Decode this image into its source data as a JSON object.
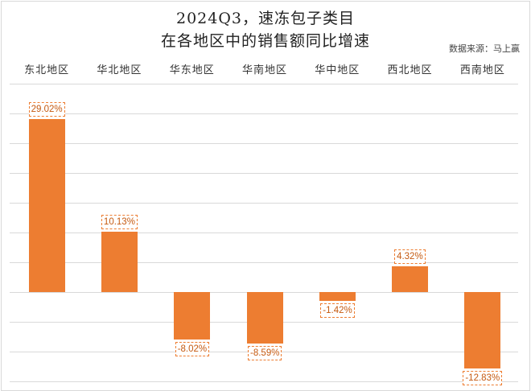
{
  "chart_data": {
    "type": "bar",
    "title": "2024Q3，速冻包子类目在各地区中的销售额同比增速",
    "title_lines": [
      "2024Q3，速冻包子类目",
      "在各地区中的销售额同比增速"
    ],
    "source": "数据来源：马上赢",
    "categories": [
      "东北地区",
      "华北地区",
      "华东地区",
      "华南地区",
      "华中地区",
      "西北地区",
      "西南地区"
    ],
    "values": [
      29.02,
      10.13,
      -8.02,
      -8.59,
      -1.42,
      4.32,
      -12.83
    ],
    "labels": [
      "29.02%",
      "10.13%",
      "-8.02%",
      "-8.59%",
      "-1.42%",
      "4.32%",
      "-12.83%"
    ],
    "xlabel": "",
    "ylabel": "",
    "ylim": [
      -15,
      35
    ],
    "grid": true,
    "x_axis_position": "top",
    "bar_color": "#ed7d31",
    "legend": null
  }
}
